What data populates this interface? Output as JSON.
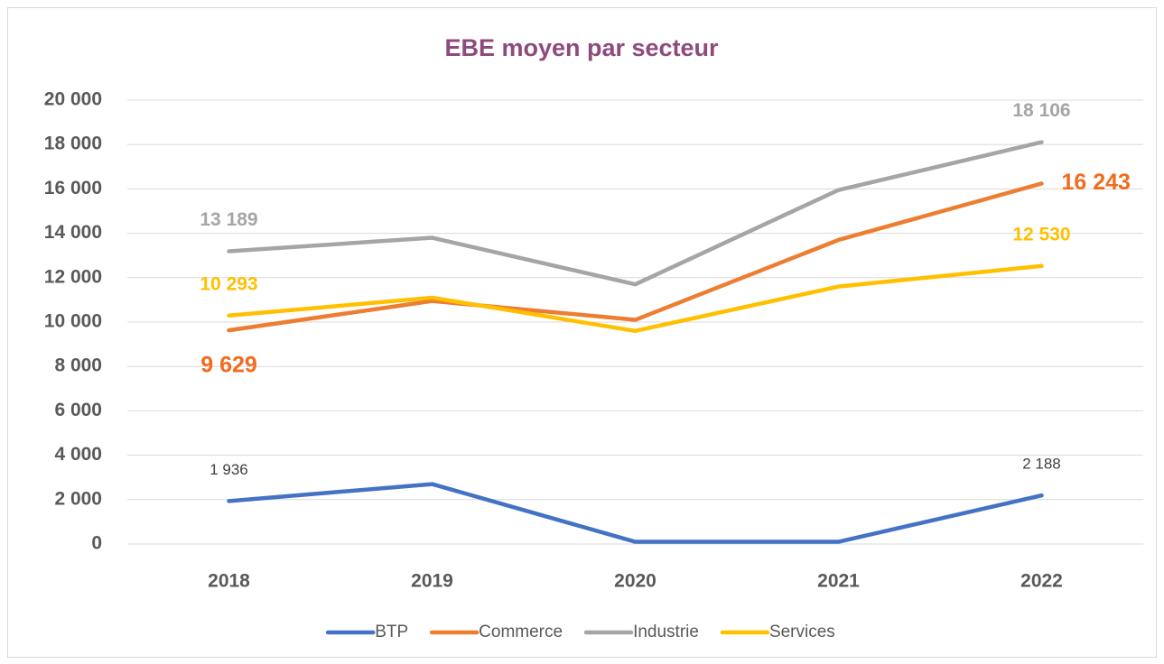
{
  "chart_data": {
    "type": "line",
    "title": "EBE moyen par secteur",
    "categories": [
      "2018",
      "2019",
      "2020",
      "2021",
      "2022"
    ],
    "series": [
      {
        "name": "BTP",
        "color": "#4472c4",
        "values": [
          1936,
          2700,
          100,
          100,
          2188
        ],
        "value_labels": [
          "1 936",
          null,
          null,
          null,
          "2 188"
        ]
      },
      {
        "name": "Commerce",
        "color": "#ed7d31",
        "values": [
          9629,
          10950,
          10100,
          13700,
          16243
        ],
        "value_labels": [
          "9 629",
          null,
          null,
          null,
          "16 243"
        ]
      },
      {
        "name": "Industrie",
        "color": "#a5a5a5",
        "values": [
          13189,
          13800,
          11700,
          15950,
          18106
        ],
        "value_labels": [
          "13 189",
          null,
          null,
          null,
          "18 106"
        ]
      },
      {
        "name": "Services",
        "color": "#ffc000",
        "values": [
          10293,
          11100,
          9600,
          11600,
          12530
        ],
        "value_labels": [
          "10 293",
          null,
          null,
          null,
          "12 530"
        ]
      }
    ],
    "ylim": [
      0,
      20000
    ],
    "yticks": [
      0,
      {
        "value": 2000,
        "label": "2 000"
      },
      {
        "value": 4000,
        "label": "4 000"
      },
      {
        "value": 6000,
        "label": "6 000"
      },
      {
        "value": 8000,
        "label": "8 000"
      },
      {
        "value": 10000,
        "label": "10 000"
      },
      {
        "value": 12000,
        "label": "12 000"
      },
      {
        "value": 14000,
        "label": "14 000"
      },
      {
        "value": 16000,
        "label": "16 000"
      },
      {
        "value": 18000,
        "label": "18 000"
      },
      {
        "value": 20000,
        "label": "20 000"
      }
    ],
    "grid": true,
    "legend": "bottom"
  }
}
